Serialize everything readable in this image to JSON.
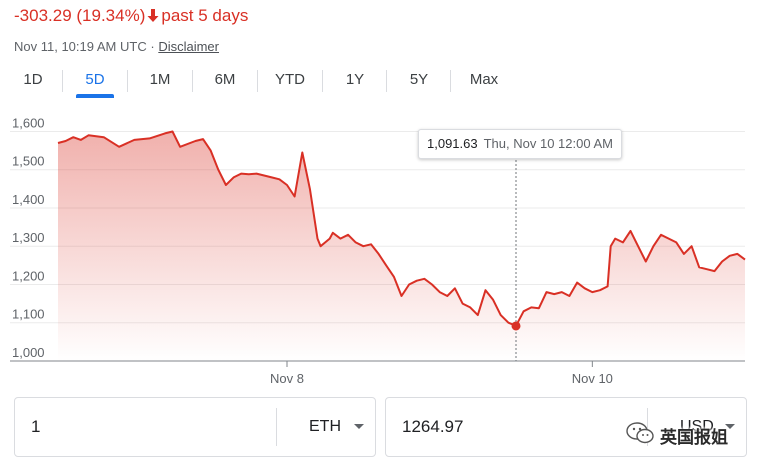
{
  "header": {
    "change_text": "-303.29 (19.34%)",
    "change_direction": "down",
    "period_text": "past 5 days",
    "timestamp": "Nov 11, 10:19 AM UTC",
    "separator": "·",
    "disclaimer_label": "Disclaimer",
    "down_color": "#d93025"
  },
  "tabs": [
    {
      "label": "1D",
      "active": false
    },
    {
      "label": "5D",
      "active": true
    },
    {
      "label": "1M",
      "active": false
    },
    {
      "label": "6M",
      "active": false
    },
    {
      "label": "YTD",
      "active": false
    },
    {
      "label": "1Y",
      "active": false
    },
    {
      "label": "5Y",
      "active": false
    },
    {
      "label": "Max",
      "active": false
    }
  ],
  "accent_color": "#1a73e8",
  "tooltip": {
    "value": "1,091.63",
    "date": "Thu, Nov 10 12:00 AM"
  },
  "chart_data": {
    "type": "area",
    "line_color": "#d93025",
    "y_ticks": [
      "1,600",
      "1,500",
      "1,400",
      "1,300",
      "1,200",
      "1,100",
      "1,000"
    ],
    "y_tick_values": [
      1600,
      1500,
      1400,
      1300,
      1200,
      1100,
      1000
    ],
    "x_ticks": [
      "Nov 8",
      "Nov 10"
    ],
    "x_tick_positions": [
      3.0,
      5.0
    ],
    "ylim": [
      1000,
      1630
    ],
    "xlim": [
      1.5,
      6.0
    ],
    "grid": true,
    "highlight": {
      "x": 4.5,
      "y": 1091.63
    },
    "series": [
      {
        "x": [
          1.5,
          1.55,
          1.6,
          1.65,
          1.7,
          1.8,
          1.9,
          2.0,
          2.1,
          2.2,
          2.25,
          2.3,
          2.4,
          2.45,
          2.5,
          2.55,
          2.6,
          2.65,
          2.7,
          2.75,
          2.8,
          2.85,
          2.9,
          2.95,
          3.0,
          3.05,
          3.1,
          3.15,
          3.2,
          3.22,
          3.25,
          3.28,
          3.3,
          3.35,
          3.4,
          3.45,
          3.5,
          3.55,
          3.6,
          3.65,
          3.7,
          3.75,
          3.8,
          3.85,
          3.9,
          3.95,
          4.0,
          4.05,
          4.1,
          4.15,
          4.2,
          4.25,
          4.3,
          4.35,
          4.4,
          4.45,
          4.5,
          4.55,
          4.6,
          4.65,
          4.7,
          4.75,
          4.8,
          4.85,
          4.9,
          4.95,
          5.0,
          5.05,
          5.1,
          5.12,
          5.15,
          5.2,
          5.25,
          5.3,
          5.35,
          5.4,
          5.45,
          5.5,
          5.55,
          5.6,
          5.65,
          5.7,
          5.75,
          5.8,
          5.85,
          5.9,
          5.95,
          6.0
        ],
        "values": [
          1570,
          1575,
          1585,
          1578,
          1590,
          1585,
          1560,
          1578,
          1582,
          1595,
          1600,
          1560,
          1575,
          1580,
          1550,
          1500,
          1460,
          1480,
          1490,
          1488,
          1490,
          1485,
          1480,
          1475,
          1460,
          1430,
          1545,
          1450,
          1320,
          1300,
          1310,
          1320,
          1335,
          1320,
          1330,
          1310,
          1300,
          1305,
          1280,
          1250,
          1220,
          1170,
          1200,
          1210,
          1215,
          1200,
          1180,
          1170,
          1190,
          1150,
          1140,
          1120,
          1185,
          1160,
          1120,
          1100,
          1092,
          1130,
          1140,
          1138,
          1180,
          1175,
          1180,
          1170,
          1205,
          1190,
          1180,
          1185,
          1195,
          1300,
          1320,
          1310,
          1340,
          1300,
          1260,
          1300,
          1330,
          1320,
          1310,
          1280,
          1300,
          1245,
          1240,
          1235,
          1260,
          1275,
          1280,
          1265
        ]
      }
    ]
  },
  "converter": {
    "amount": "1",
    "from_unit": "ETH",
    "converted": "1264.97",
    "to_unit": "USD"
  },
  "watermark": {
    "text": "英国报姐"
  }
}
